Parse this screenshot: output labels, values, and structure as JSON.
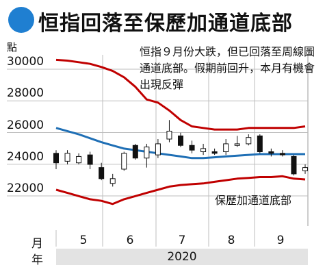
{
  "title": "恒指回落至保歷加通道底部",
  "unit": "點",
  "note": "恒指９月份大跌，但已回落至周線圖通道底部。假期前回升，本月有機會出現反彈",
  "lower_band_label": "保歷加通道底部",
  "axis_labels": {
    "month_row": "月",
    "year_row": "年",
    "year": "2020"
  },
  "colors": {
    "accent": "#1f7fd1",
    "band": "#c00000",
    "mid": "#1f6fb5",
    "candle": "#111111"
  },
  "chart_data": {
    "type": "candlestick",
    "title": "恒指回落至保歷加通道底部",
    "ylabel": "點",
    "ylim": [
      20600,
      31000
    ],
    "yticks": [
      22000,
      24000,
      26000,
      28000,
      30000
    ],
    "months": [
      "5",
      "6",
      "7",
      "8",
      "9"
    ],
    "candles": [
      {
        "open": 24300,
        "close": 23700,
        "high": 24500,
        "low": 23300
      },
      {
        "open": 23800,
        "close": 24300,
        "high": 24500,
        "low": 23600
      },
      {
        "open": 23700,
        "close": 24100,
        "high": 24300,
        "low": 23600
      },
      {
        "open": 24200,
        "close": 23600,
        "high": 24400,
        "low": 23300
      },
      {
        "open": 23400,
        "close": 22700,
        "high": 23700,
        "low": 22600
      },
      {
        "open": 22400,
        "close": 22700,
        "high": 23000,
        "low": 22200
      },
      {
        "open": 23300,
        "close": 24300,
        "high": 24400,
        "low": 23200
      },
      {
        "open": 24800,
        "close": 24000,
        "high": 24900,
        "low": 23900
      },
      {
        "open": 24000,
        "close": 24700,
        "high": 24900,
        "low": 23400
      },
      {
        "open": 24200,
        "close": 24900,
        "high": 25200,
        "low": 24000
      },
      {
        "open": 25200,
        "close": 25700,
        "high": 26400,
        "low": 25000
      },
      {
        "open": 25400,
        "close": 24800,
        "high": 25600,
        "low": 24700
      },
      {
        "open": 24800,
        "close": 24500,
        "high": 25100,
        "low": 24300
      },
      {
        "open": 24400,
        "close": 24600,
        "high": 24900,
        "low": 24200
      },
      {
        "open": 24400,
        "close": 24300,
        "high": 24600,
        "low": 24200
      },
      {
        "open": 24400,
        "close": 24900,
        "high": 25200,
        "low": 24200
      },
      {
        "open": 24800,
        "close": 24900,
        "high": 25400,
        "low": 24700
      },
      {
        "open": 24900,
        "close": 25300,
        "high": 25500,
        "low": 24800
      },
      {
        "open": 25400,
        "close": 24400,
        "high": 25500,
        "low": 24300
      },
      {
        "open": 24400,
        "close": 24300,
        "high": 24600,
        "low": 24100
      },
      {
        "open": 24300,
        "close": 24200,
        "high": 24500,
        "low": 24100
      },
      {
        "open": 24100,
        "close": 23000,
        "high": 24200,
        "low": 22900
      },
      {
        "open": 23200,
        "close": 23400,
        "high": 23600,
        "low": 23000
      }
    ],
    "series": [
      {
        "name": "",
        "role": "upper_band",
        "values": [
          30200,
          30150,
          30050,
          29950,
          29750,
          29500,
          29100,
          28500,
          27700,
          27500,
          27000,
          26400,
          26000,
          25900,
          25800,
          25800,
          25800,
          25900,
          25900,
          25900,
          25900,
          25900,
          26000
        ]
      },
      {
        "name": "",
        "role": "middle_band",
        "values": [
          25900,
          25700,
          25500,
          25250,
          25000,
          24800,
          24600,
          24500,
          24400,
          24300,
          24200,
          24100,
          24000,
          24000,
          24050,
          24100,
          24150,
          24200,
          24250,
          24250,
          24250,
          24250,
          24250
        ]
      },
      {
        "name": "",
        "role": "lower_band",
        "values": [
          22000,
          21800,
          21600,
          21400,
          21300,
          21100,
          21400,
          21600,
          21800,
          22000,
          22200,
          22300,
          22350,
          22400,
          22500,
          22600,
          22700,
          22750,
          22800,
          22800,
          22850,
          22700,
          22650
        ]
      }
    ]
  }
}
